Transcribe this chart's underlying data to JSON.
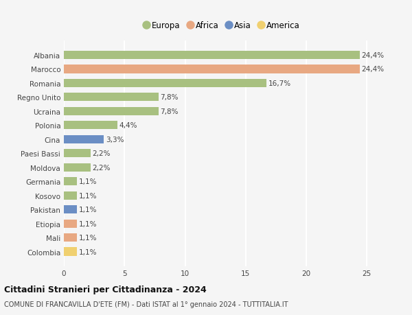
{
  "countries": [
    "Albania",
    "Marocco",
    "Romania",
    "Regno Unito",
    "Ucraina",
    "Polonia",
    "Cina",
    "Paesi Bassi",
    "Moldova",
    "Germania",
    "Kosovo",
    "Pakistan",
    "Etiopia",
    "Mali",
    "Colombia"
  ],
  "values": [
    24.4,
    24.4,
    16.7,
    7.8,
    7.8,
    4.4,
    3.3,
    2.2,
    2.2,
    1.1,
    1.1,
    1.1,
    1.1,
    1.1,
    1.1
  ],
  "labels": [
    "24,4%",
    "24,4%",
    "16,7%",
    "7,8%",
    "7,8%",
    "4,4%",
    "3,3%",
    "2,2%",
    "2,2%",
    "1,1%",
    "1,1%",
    "1,1%",
    "1,1%",
    "1,1%",
    "1,1%"
  ],
  "continents": [
    "Europa",
    "Africa",
    "Europa",
    "Europa",
    "Europa",
    "Europa",
    "Asia",
    "Europa",
    "Europa",
    "Europa",
    "Europa",
    "Asia",
    "Africa",
    "Africa",
    "America"
  ],
  "continent_colors": {
    "Europa": "#a8c080",
    "Africa": "#e8a882",
    "Asia": "#6b8ec4",
    "America": "#f0d070"
  },
  "legend_order": [
    "Europa",
    "Africa",
    "Asia",
    "America"
  ],
  "xlim": [
    0,
    26
  ],
  "xticks": [
    0,
    5,
    10,
    15,
    20,
    25
  ],
  "title": "Cittadini Stranieri per Cittadinanza - 2024",
  "subtitle": "COMUNE DI FRANCAVILLA D'ETE (FM) - Dati ISTAT al 1° gennaio 2024 - TUTTITALIA.IT",
  "background_color": "#f5f5f5",
  "grid_color": "#ffffff",
  "bar_height": 0.6
}
